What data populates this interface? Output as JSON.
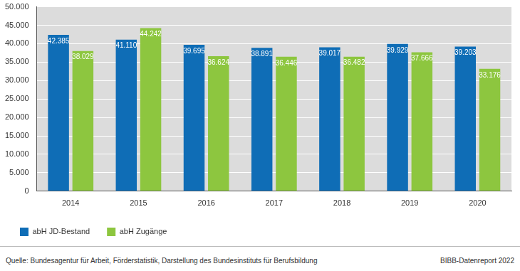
{
  "chart_data": {
    "type": "bar",
    "categories": [
      "2014",
      "2015",
      "2016",
      "2017",
      "2018",
      "2019",
      "2020"
    ],
    "series": [
      {
        "name": "abH JD-Bestand",
        "color": "#0f6db6",
        "values": [
          42385,
          41110,
          39695,
          38891,
          39017,
          39929,
          39203
        ],
        "value_labels": [
          "42.385",
          "41.110",
          "39.695",
          "38.891",
          "39.017",
          "39.929",
          "39.203"
        ]
      },
      {
        "name": "abH Zugänge",
        "color": "#8dc63f",
        "values": [
          38029,
          44242,
          36624,
          36446,
          36482,
          37666,
          33176
        ],
        "value_labels": [
          "38.029",
          "44.242",
          "36.624",
          "36.446",
          "36.482",
          "37.666",
          "33.176"
        ]
      }
    ],
    "ylim": [
      0,
      50000
    ],
    "yticks": [
      0,
      {
        "value": 5000,
        "label": "5.000"
      },
      {
        "value": 10000,
        "label": "10.000"
      },
      {
        "value": 15000,
        "label": "15.000"
      },
      {
        "value": 20000,
        "label": "20.000"
      },
      {
        "value": 25000,
        "label": "25.000"
      },
      {
        "value": 30000,
        "label": "30.000"
      },
      {
        "value": 35000,
        "label": "35.000"
      },
      {
        "value": 40000,
        "label": "40.000"
      },
      {
        "value": 45000,
        "label": "45.000"
      },
      {
        "value": 50000,
        "label": "50.000"
      }
    ],
    "grid": true,
    "legend": "bottom-left",
    "data_labels": true,
    "annotations": [
      "Quelle: Bundesagentur für Arbeit, Förderstatistik, Darstellung des Bundesinstituts für Berufsbildung",
      "BIBB-Datenreport 2022"
    ]
  }
}
